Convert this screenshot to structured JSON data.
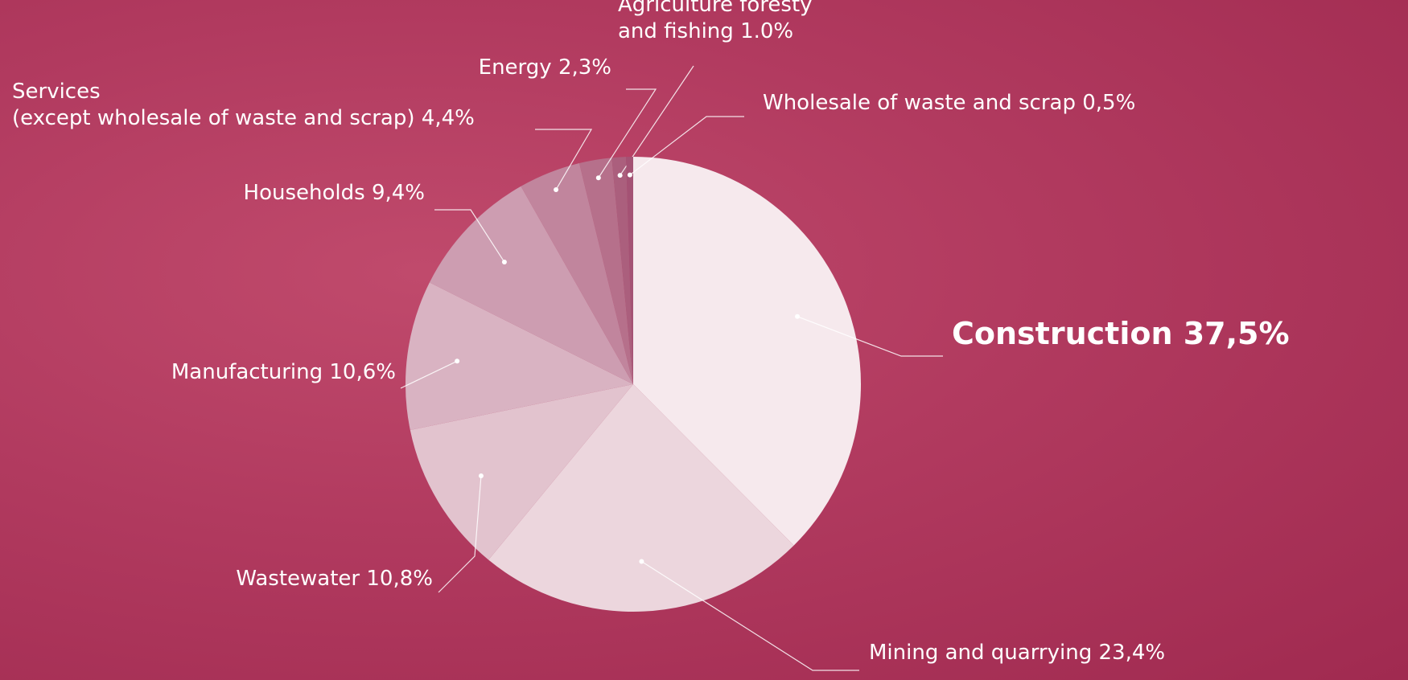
{
  "chart_data": {
    "type": "pie",
    "categories": [
      "Construction",
      "Mining and quarrying",
      "Wastewater",
      "Manufacturing",
      "Households",
      "Services\n(except wholesale of waste and scrap)",
      "Energy",
      "Agriculture foresty\nand fishing",
      "Wholesale of waste and scrap"
    ],
    "values": [
      37.5,
      23.4,
      10.8,
      10.6,
      9.4,
      4.4,
      2.3,
      1.0,
      0.5
    ],
    "value_labels": [
      "37,5%",
      "23,4%",
      "10,8%",
      "10,6%",
      "9,4%",
      "4,4%",
      "2,3%",
      "1.0%",
      "0,5%"
    ],
    "colors": [
      "#f6e9ed",
      "#ecd6dd",
      "#e2c3ce",
      "#d9b3c2",
      "#cd9db1",
      "#c1859d",
      "#b6708b",
      "#ab5f7d",
      "#a45274"
    ]
  }
}
